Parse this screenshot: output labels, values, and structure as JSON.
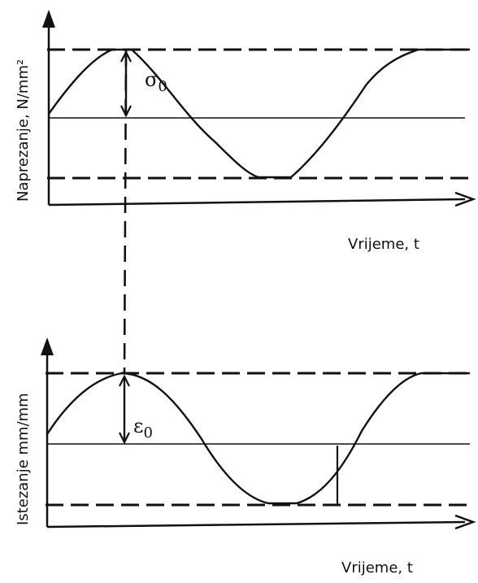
{
  "top_panel": {
    "ylabel": "Naprezanje, N/mm²",
    "xlabel": "Vrijeme, t",
    "amplitude_symbol": "σ",
    "amplitude_subscript": "0"
  },
  "bottom_panel": {
    "ylabel": "Istezanje mm/mm",
    "xlabel": "Vrijeme, t",
    "amplitude_symbol": "ε",
    "amplitude_subscript": "0"
  },
  "colors": {
    "line": "#111111",
    "background": "#ffffff"
  }
}
